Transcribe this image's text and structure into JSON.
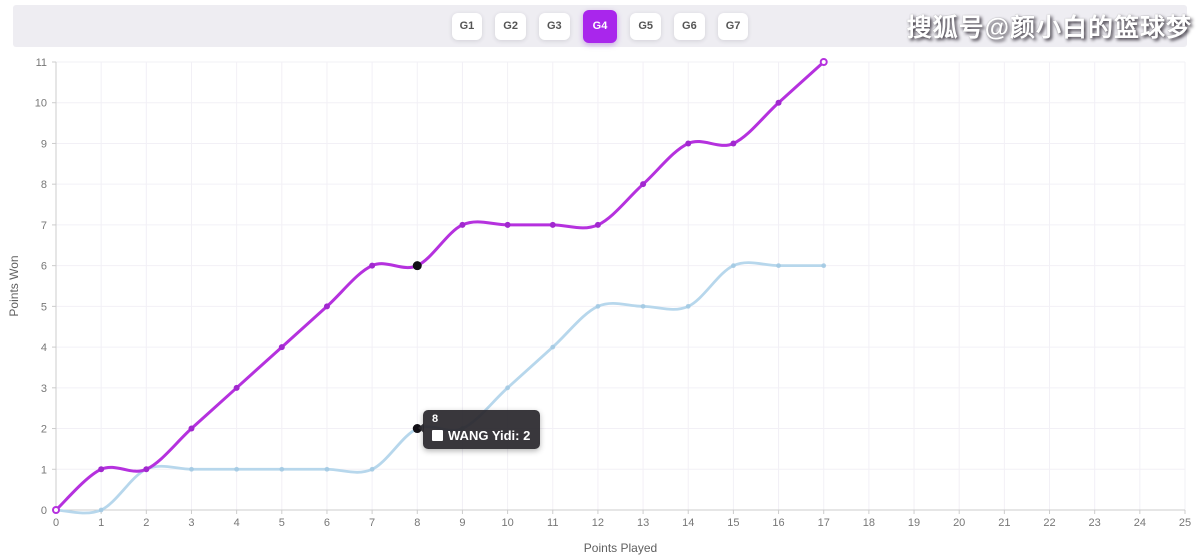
{
  "header": {
    "tabs": [
      {
        "label": "G1",
        "active": false
      },
      {
        "label": "G2",
        "active": false
      },
      {
        "label": "G3",
        "active": false
      },
      {
        "label": "G4",
        "active": true
      },
      {
        "label": "G5",
        "active": false
      },
      {
        "label": "G6",
        "active": false
      },
      {
        "label": "G7",
        "active": false
      }
    ],
    "watermark": "搜狐号@颜小白的篮球梦"
  },
  "colors": {
    "accent": "#a926ec",
    "magenta_line": "#b531de",
    "magenta_marker": "#a128cf",
    "blue_line": "#b7d7ec",
    "blue_marker": "#a2c9e3",
    "grid": "#f2f0f6",
    "axis": "#cccccc",
    "tick_text": "#777777",
    "axis_name_text": "#606060",
    "hover_dot": "#121016",
    "tooltip_bg": "#2a282d"
  },
  "chart_data": {
    "type": "line",
    "smooth": true,
    "title": "",
    "xlabel": "Points Played",
    "ylabel": "Points Won",
    "xlim": [
      0,
      25
    ],
    "ylim": [
      0,
      11
    ],
    "x_tick_step": 1,
    "y_tick_step": 1,
    "grid": true,
    "series": [
      {
        "name": "",
        "color": "#b531de",
        "points": [
          [
            0,
            0
          ],
          [
            1,
            1
          ],
          [
            2,
            1
          ],
          [
            3,
            2
          ],
          [
            4,
            3
          ],
          [
            5,
            4
          ],
          [
            6,
            5
          ],
          [
            7,
            6
          ],
          [
            8,
            6
          ],
          [
            9,
            7
          ],
          [
            10,
            7
          ],
          [
            11,
            7
          ],
          [
            12,
            7
          ],
          [
            13,
            8
          ],
          [
            14,
            9
          ],
          [
            15,
            9
          ],
          [
            16,
            10
          ],
          [
            17,
            11
          ]
        ]
      },
      {
        "name": "WANG Yidi",
        "color": "#b7d7ec",
        "points": [
          [
            0,
            0
          ],
          [
            1,
            0
          ],
          [
            2,
            1
          ],
          [
            3,
            1
          ],
          [
            4,
            1
          ],
          [
            5,
            1
          ],
          [
            6,
            1
          ],
          [
            7,
            1
          ],
          [
            8,
            2
          ],
          [
            9,
            2
          ],
          [
            10,
            3
          ],
          [
            11,
            4
          ],
          [
            12,
            5
          ],
          [
            13,
            5
          ],
          [
            14,
            5
          ],
          [
            15,
            6
          ],
          [
            16,
            6
          ],
          [
            17,
            6
          ]
        ]
      }
    ],
    "hover": {
      "x": 8,
      "dots": [
        [
          8,
          6
        ],
        [
          8,
          2
        ]
      ]
    },
    "tooltip": {
      "title": "8",
      "label": "WANG Yidi",
      "value": "2",
      "text": "WANG Yidi: 2"
    }
  }
}
